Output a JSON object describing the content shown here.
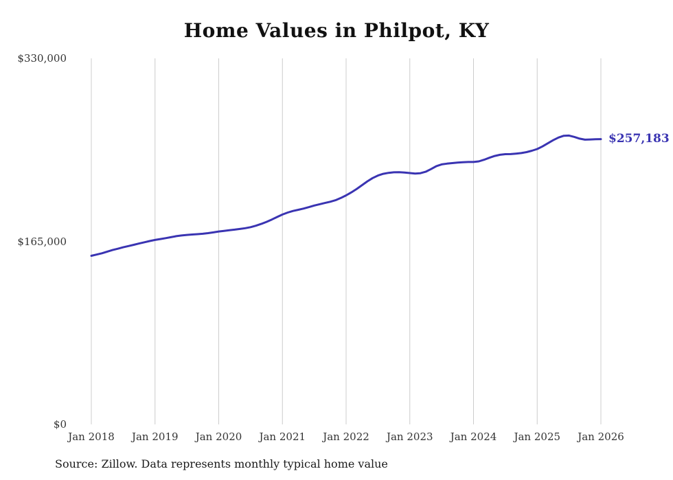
{
  "title": "Home Values in Philpot, KY",
  "source_note": "Source: Zillow. Data represents monthly typical home value",
  "end_label": "$257,183",
  "colors": {
    "line": "#3a34b2",
    "grid": "#cccccc",
    "tick_text": "#333333",
    "end_label": "#3a34b2"
  },
  "chart_data": {
    "type": "line",
    "title": "Home Values in Philpot, KY",
    "xlabel": "",
    "ylabel": "",
    "x_ticks": [
      "Jan 2018",
      "Jan 2019",
      "Jan 2020",
      "Jan 2021",
      "Jan 2022",
      "Jan 2023",
      "Jan 2024",
      "Jan 2025",
      "Jan 2026"
    ],
    "y_ticks": [
      "$330,000",
      "$165,000",
      "$0"
    ],
    "ylim": [
      0,
      330000
    ],
    "grid": "vertical-only",
    "legend": "none",
    "annotation": {
      "text": "$257,183",
      "value": 257183,
      "position": "line-end"
    },
    "series": [
      {
        "name": "Monthly typical home value",
        "x_start": "2018-01",
        "x_end": "2026-01",
        "frequency": "monthly",
        "values": [
          152000,
          153100,
          154300,
          155800,
          157200,
          158400,
          159700,
          160800,
          161900,
          163100,
          164200,
          165300,
          166300,
          167100,
          167900,
          168800,
          169700,
          170300,
          170800,
          171200,
          171500,
          171900,
          172400,
          173100,
          173900,
          174500,
          175100,
          175600,
          176200,
          176900,
          177800,
          179100,
          180700,
          182600,
          184700,
          187000,
          189200,
          191000,
          192400,
          193500,
          194600,
          195900,
          197300,
          198500,
          199600,
          200700,
          202100,
          204100,
          206500,
          209200,
          212300,
          215700,
          219100,
          222100,
          224400,
          225900,
          226800,
          227300,
          227400,
          227100,
          226600,
          226200,
          226500,
          227800,
          230200,
          232800,
          234400,
          235100,
          235600,
          236000,
          236400,
          236600,
          236600,
          237100,
          238600,
          240400,
          242000,
          243100,
          243600,
          243700,
          244100,
          244600,
          245500,
          246700,
          248300,
          250600,
          253400,
          256200,
          258600,
          260200,
          260400,
          259200,
          257600,
          256700,
          256900,
          257100,
          257183
        ]
      }
    ]
  }
}
